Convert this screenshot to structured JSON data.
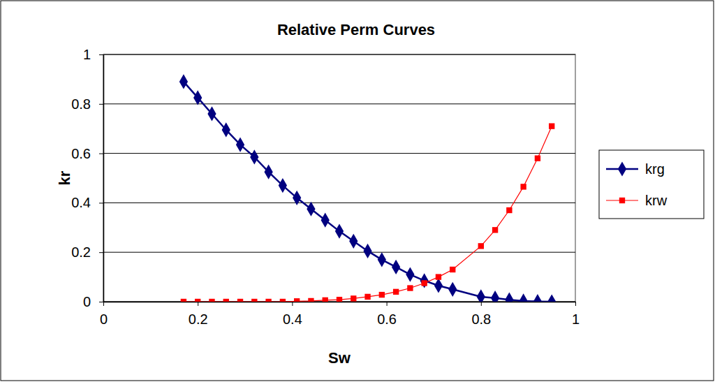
{
  "chart_data": {
    "type": "line",
    "title": "Relative Perm Curves",
    "x_label": "Sw",
    "y_label": "kr",
    "x": [
      0.17,
      0.2,
      0.23,
      0.26,
      0.29,
      0.32,
      0.35,
      0.38,
      0.41,
      0.44,
      0.47,
      0.5,
      0.53,
      0.56,
      0.59,
      0.62,
      0.65,
      0.68,
      0.71,
      0.74,
      0.8,
      0.83,
      0.86,
      0.89,
      0.92,
      0.95
    ],
    "series": [
      {
        "name": "krg",
        "color": "#000080",
        "marker": "diamond",
        "line_style": "solid",
        "values": [
          0.89,
          0.825,
          0.76,
          0.695,
          0.635,
          0.585,
          0.525,
          0.47,
          0.42,
          0.375,
          0.33,
          0.285,
          0.245,
          0.205,
          0.17,
          0.14,
          0.11,
          0.085,
          0.065,
          0.05,
          0.02,
          0.015,
          0.008,
          0.003,
          0.001,
          0.0
        ]
      },
      {
        "name": "krw",
        "color": "#ff0000",
        "marker": "square",
        "line_style": "solid",
        "values": [
          0.0,
          0.0,
          0.0,
          0.0,
          0.0,
          0.0,
          0.0,
          0.0,
          0.002,
          0.003,
          0.006,
          0.008,
          0.013,
          0.02,
          0.028,
          0.04,
          0.055,
          0.075,
          0.1,
          0.13,
          0.225,
          0.29,
          0.37,
          0.465,
          0.58,
          0.71
        ]
      }
    ],
    "xlim": [
      0,
      1
    ],
    "xticks": [
      0,
      0.2,
      0.4,
      0.6,
      0.8,
      1
    ],
    "ylim": [
      0,
      1
    ],
    "yticks": [
      0,
      0.2,
      0.4,
      0.6,
      0.8,
      1
    ],
    "grid": true,
    "legend": "right"
  }
}
